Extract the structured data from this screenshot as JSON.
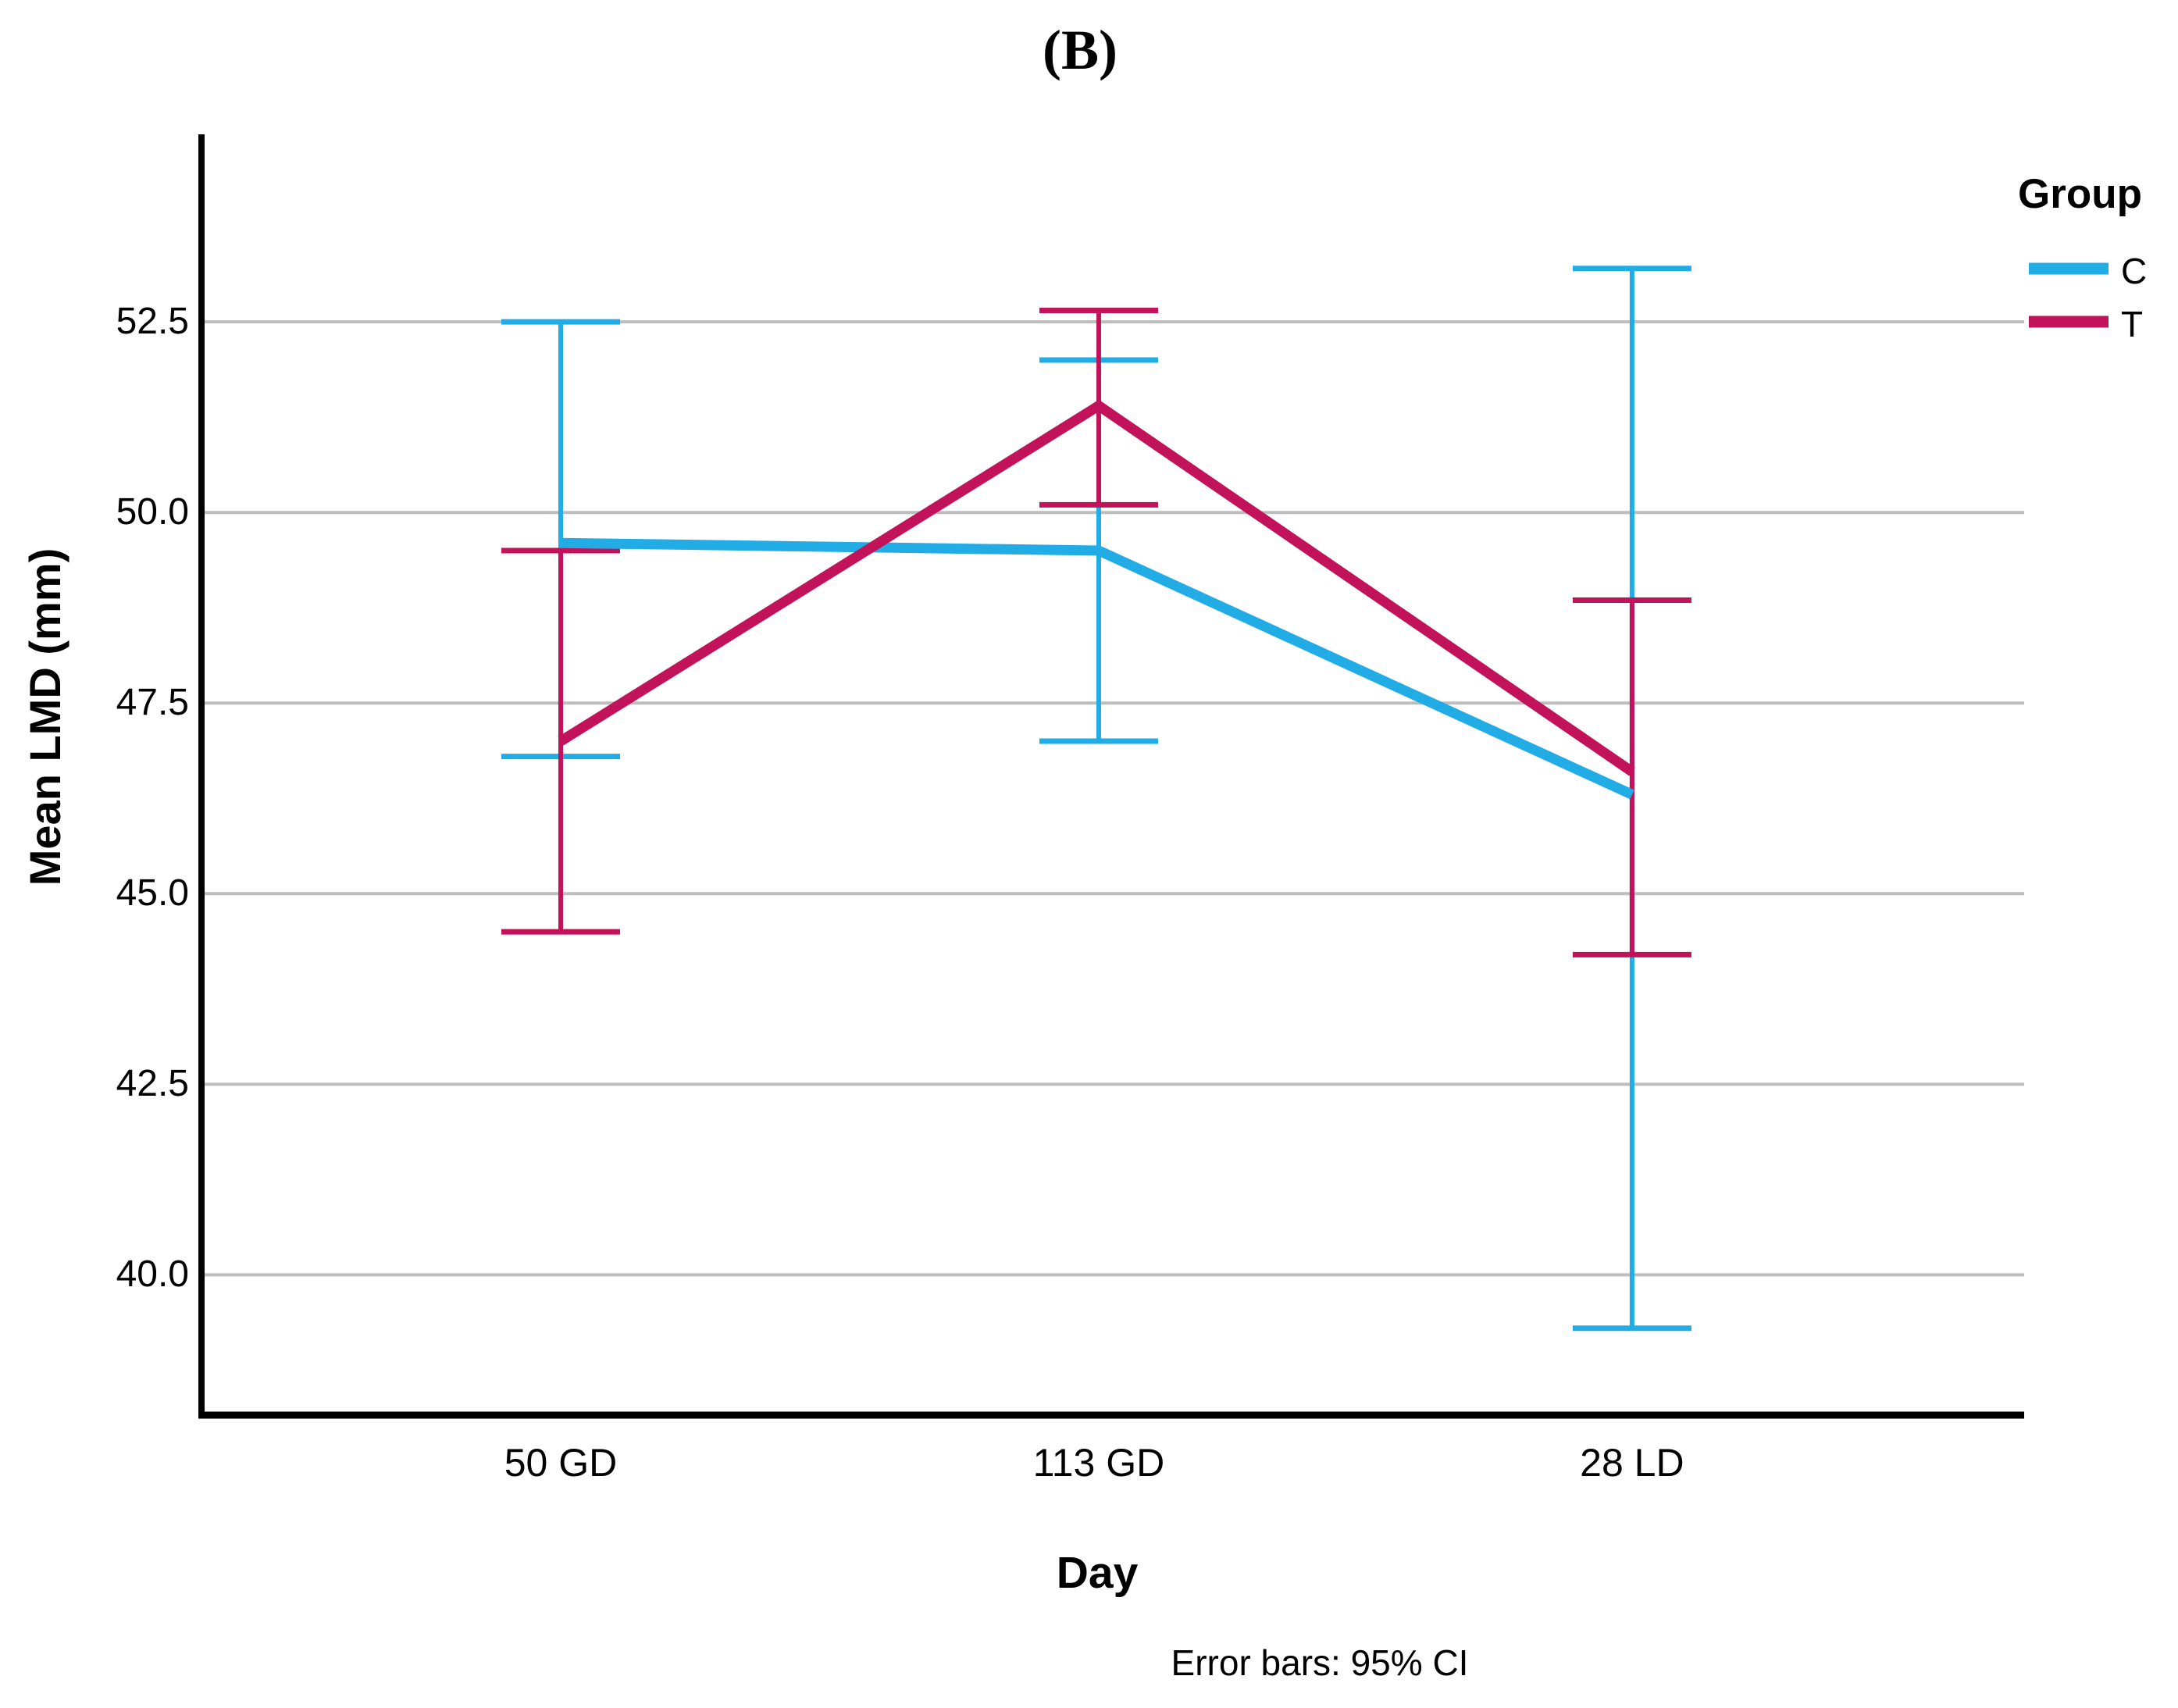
{
  "title": "(B)",
  "caption": "Error bars: 95% CI",
  "legend": {
    "title": "Group",
    "entries": [
      {
        "label": "C",
        "color": "#21ACE5"
      },
      {
        "label": "T",
        "color": "#C2125A"
      }
    ]
  },
  "chart_data": {
    "type": "line",
    "title": "(B)",
    "xlabel": "Day",
    "ylabel": "Mean LMD (mm)",
    "caption": "Error bars: 95% CI",
    "categories": [
      "50 GD",
      "113 GD",
      "28 LD"
    ],
    "ytick_labels": [
      "52.5",
      "50.0",
      "47.5",
      "45.0",
      "42.5",
      "40.0"
    ],
    "yticks": [
      52.5,
      50.0,
      47.5,
      45.0,
      42.5,
      40.0
    ],
    "ylim": [
      38.16,
      54.96
    ],
    "grid": "horizontal-only",
    "grid_color": "#BDBDBD",
    "axis_color": "#000000",
    "legend_position": "top-right",
    "error_bars": "95% CI",
    "series": [
      {
        "name": "C",
        "color": "#21ACE5",
        "values": [
          49.6,
          49.5,
          46.3
        ],
        "ci_low": [
          46.8,
          47.0,
          39.3
        ],
        "ci_high": [
          52.5,
          52.0,
          53.2
        ]
      },
      {
        "name": "T",
        "color": "#C2125A",
        "values": [
          47.0,
          51.4,
          46.6
        ],
        "ci_low": [
          44.5,
          50.1,
          44.2
        ],
        "ci_high": [
          49.5,
          52.65,
          48.85
        ]
      }
    ]
  }
}
